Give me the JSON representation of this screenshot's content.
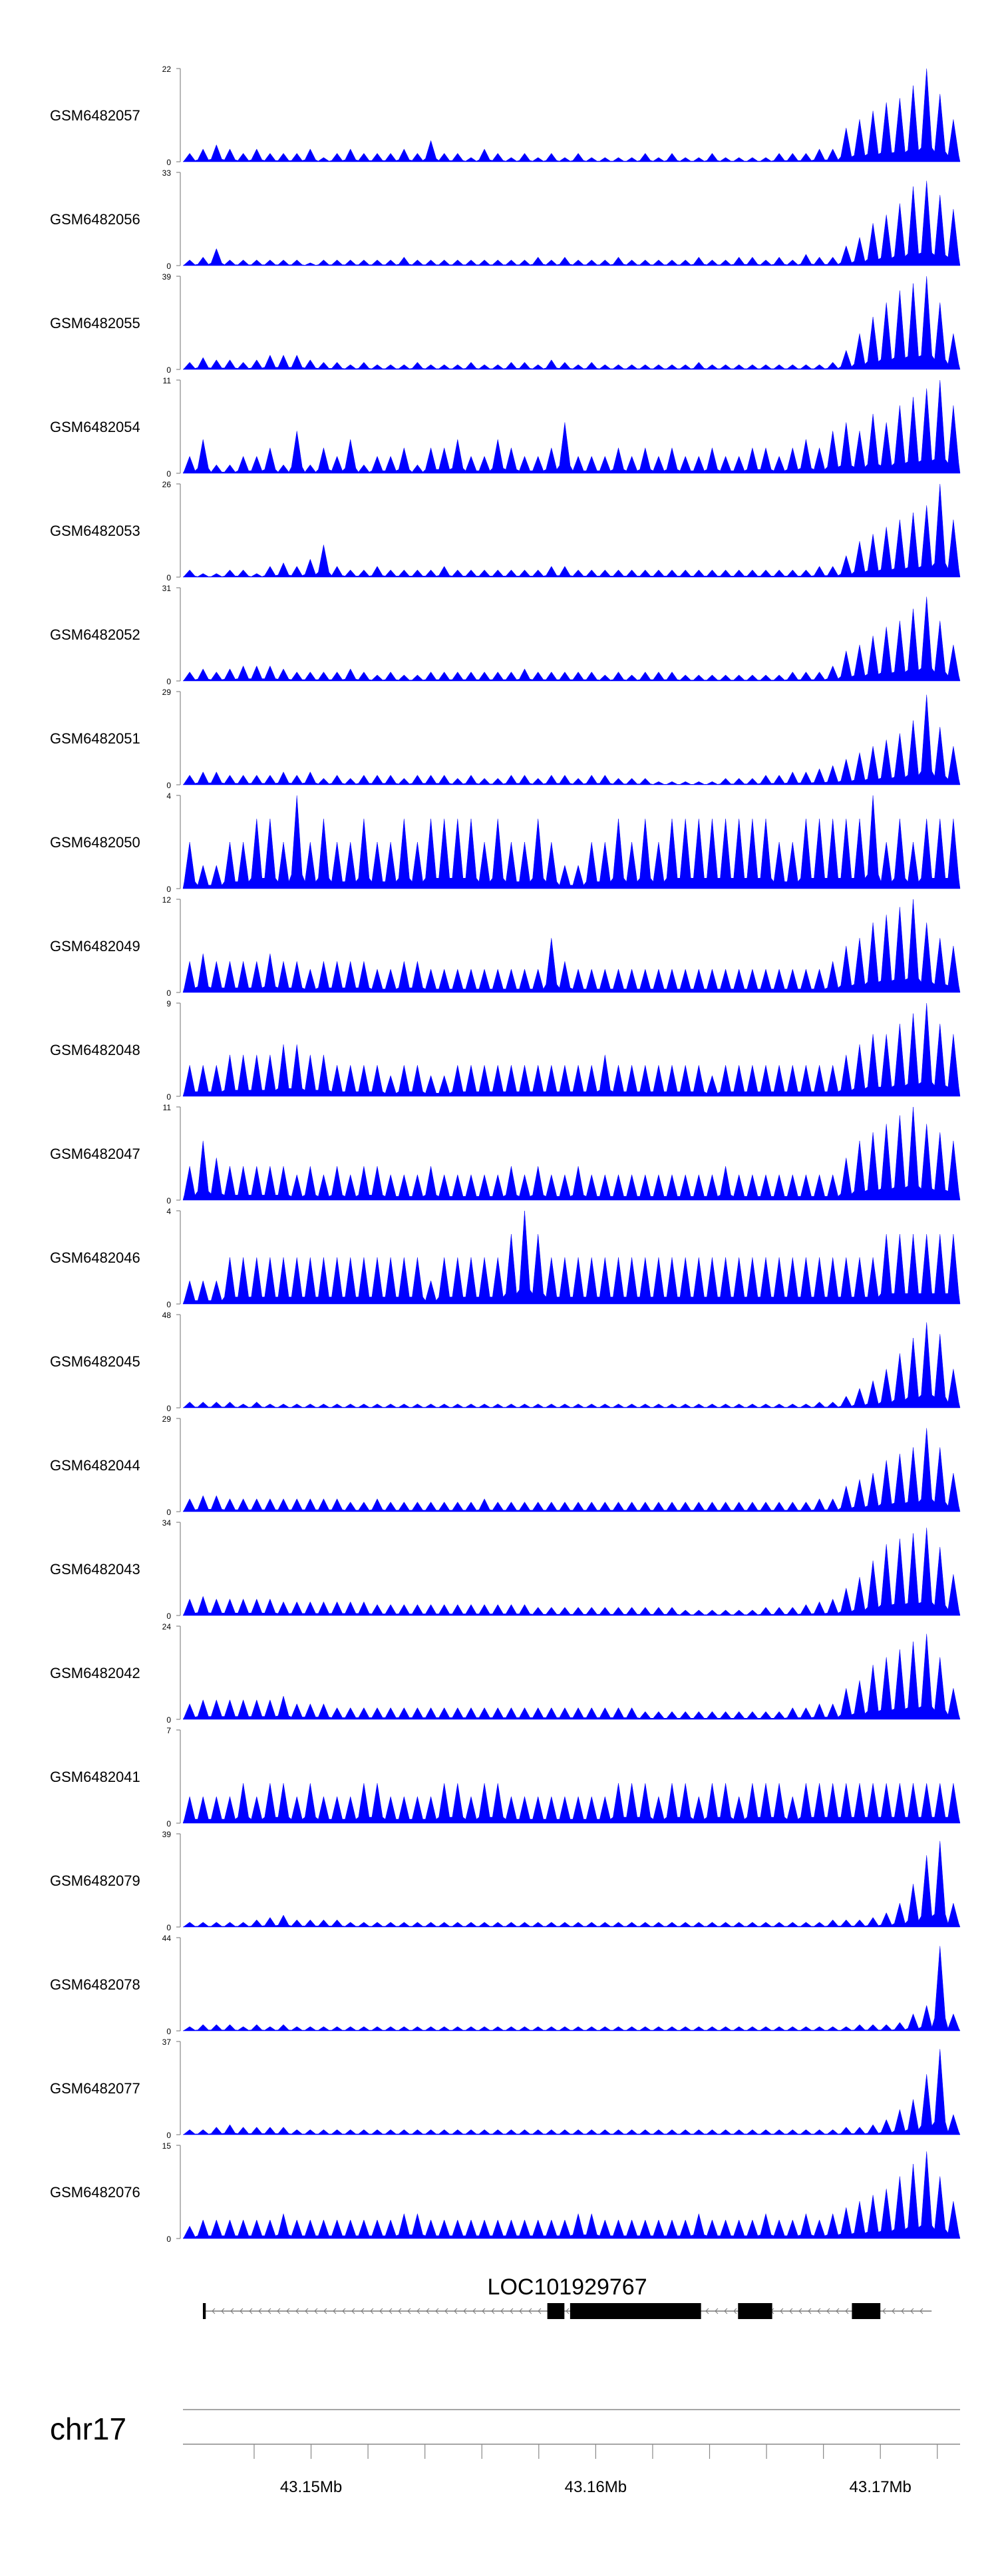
{
  "chart_data": {
    "type": "area",
    "chromosome": "chr17",
    "xlim": [
      43.1455,
      43.1728
    ],
    "x_ticks": [
      43.15,
      43.16,
      43.17
    ],
    "x_tick_labels": [
      "43.15Mb",
      "43.16Mb",
      "43.17Mb"
    ],
    "x_minor_ticks": [
      43.148,
      43.15,
      43.152,
      43.154,
      43.156,
      43.158,
      43.16,
      43.162,
      43.164,
      43.166,
      43.168,
      43.17,
      43.172
    ],
    "series_color": "#0000ff",
    "tracks": [
      {
        "name": "GSM6482057",
        "ymax": 22,
        "values": [
          2,
          3,
          4,
          3,
          2,
          3,
          2,
          2,
          2,
          3,
          1,
          2,
          3,
          2,
          2,
          2,
          3,
          2,
          5,
          2,
          2,
          1,
          3,
          2,
          1,
          2,
          1,
          2,
          1,
          2,
          1,
          1,
          1,
          1,
          2,
          1,
          2,
          1,
          1,
          2,
          1,
          1,
          1,
          1,
          2,
          2,
          2,
          3,
          3,
          8,
          10,
          12,
          14,
          15,
          18,
          22,
          16,
          10
        ]
      },
      {
        "name": "GSM6482056",
        "ymax": 33,
        "values": [
          2,
          3,
          6,
          2,
          2,
          2,
          2,
          2,
          2,
          1,
          2,
          2,
          2,
          2,
          2,
          2,
          3,
          2,
          2,
          2,
          2,
          2,
          2,
          2,
          2,
          2,
          3,
          2,
          3,
          2,
          2,
          2,
          3,
          2,
          2,
          2,
          2,
          2,
          3,
          2,
          2,
          3,
          3,
          2,
          3,
          2,
          4,
          3,
          3,
          7,
          10,
          15,
          18,
          22,
          28,
          30,
          25,
          20
        ]
      },
      {
        "name": "GSM6482055",
        "ymax": 39,
        "values": [
          3,
          5,
          4,
          4,
          3,
          4,
          6,
          6,
          6,
          4,
          3,
          3,
          2,
          3,
          2,
          2,
          2,
          3,
          2,
          2,
          2,
          3,
          2,
          2,
          3,
          3,
          2,
          4,
          3,
          2,
          3,
          2,
          2,
          2,
          2,
          2,
          2,
          2,
          3,
          2,
          2,
          2,
          2,
          2,
          2,
          2,
          2,
          2,
          3,
          8,
          15,
          22,
          28,
          33,
          36,
          39,
          28,
          15
        ]
      },
      {
        "name": "GSM6482054",
        "ymax": 11,
        "values": [
          2,
          4,
          1,
          1,
          2,
          2,
          3,
          1,
          5,
          1,
          3,
          2,
          4,
          1,
          2,
          2,
          3,
          1,
          3,
          3,
          4,
          2,
          2,
          4,
          3,
          2,
          2,
          3,
          6,
          2,
          2,
          2,
          3,
          2,
          3,
          2,
          3,
          2,
          2,
          3,
          2,
          2,
          3,
          3,
          2,
          3,
          4,
          3,
          5,
          6,
          5,
          7,
          6,
          8,
          9,
          10,
          11,
          8
        ]
      },
      {
        "name": "GSM6482053",
        "ymax": 26,
        "values": [
          2,
          1,
          1,
          2,
          2,
          1,
          3,
          4,
          3,
          5,
          9,
          3,
          2,
          2,
          3,
          2,
          2,
          2,
          2,
          3,
          2,
          2,
          2,
          2,
          2,
          2,
          2,
          3,
          3,
          2,
          2,
          2,
          2,
          2,
          2,
          2,
          2,
          2,
          2,
          2,
          2,
          2,
          2,
          2,
          2,
          2,
          2,
          3,
          3,
          6,
          10,
          12,
          14,
          16,
          18,
          20,
          26,
          16
        ]
      },
      {
        "name": "GSM6482052",
        "ymax": 31,
        "values": [
          3,
          4,
          3,
          4,
          5,
          5,
          5,
          4,
          3,
          3,
          3,
          3,
          4,
          3,
          2,
          3,
          2,
          2,
          3,
          3,
          3,
          3,
          3,
          3,
          3,
          4,
          3,
          3,
          3,
          3,
          3,
          2,
          3,
          2,
          3,
          3,
          3,
          2,
          2,
          2,
          2,
          2,
          2,
          2,
          2,
          3,
          3,
          3,
          5,
          10,
          12,
          15,
          18,
          20,
          24,
          28,
          20,
          12
        ]
      },
      {
        "name": "GSM6482051",
        "ymax": 29,
        "values": [
          3,
          4,
          4,
          3,
          3,
          3,
          3,
          4,
          3,
          4,
          2,
          3,
          2,
          3,
          3,
          3,
          2,
          3,
          3,
          3,
          2,
          3,
          2,
          2,
          3,
          3,
          2,
          3,
          3,
          2,
          3,
          3,
          2,
          2,
          2,
          1,
          1,
          1,
          1,
          1,
          2,
          2,
          2,
          3,
          3,
          4,
          4,
          5,
          6,
          8,
          10,
          12,
          14,
          16,
          20,
          28,
          18,
          12
        ]
      },
      {
        "name": "GSM6482050",
        "ymax": 4,
        "values": [
          2,
          1,
          1,
          2,
          2,
          3,
          3,
          2,
          4,
          2,
          3,
          2,
          2,
          3,
          2,
          2,
          3,
          2,
          3,
          3,
          3,
          3,
          2,
          3,
          2,
          2,
          3,
          2,
          1,
          1,
          2,
          2,
          3,
          2,
          3,
          2,
          3,
          3,
          3,
          3,
          3,
          3,
          3,
          3,
          2,
          2,
          3,
          3,
          3,
          3,
          3,
          4,
          2,
          3,
          2,
          3,
          3,
          3
        ]
      },
      {
        "name": "GSM6482049",
        "ymax": 12,
        "values": [
          4,
          5,
          4,
          4,
          4,
          4,
          5,
          4,
          4,
          3,
          4,
          4,
          4,
          4,
          3,
          3,
          4,
          4,
          3,
          3,
          3,
          3,
          3,
          3,
          3,
          3,
          3,
          7,
          4,
          3,
          3,
          3,
          3,
          3,
          3,
          3,
          3,
          3,
          3,
          3,
          3,
          3,
          3,
          3,
          3,
          3,
          3,
          3,
          4,
          6,
          7,
          9,
          10,
          11,
          12,
          9,
          7,
          6
        ]
      },
      {
        "name": "GSM6482048",
        "ymax": 9,
        "values": [
          3,
          3,
          3,
          4,
          4,
          4,
          4,
          5,
          5,
          4,
          4,
          3,
          3,
          3,
          3,
          2,
          3,
          3,
          2,
          2,
          3,
          3,
          3,
          3,
          3,
          3,
          3,
          3,
          3,
          3,
          3,
          4,
          3,
          3,
          3,
          3,
          3,
          3,
          3,
          2,
          3,
          3,
          3,
          3,
          3,
          3,
          3,
          3,
          3,
          4,
          5,
          6,
          6,
          7,
          8,
          9,
          7,
          6
        ]
      },
      {
        "name": "GSM6482047",
        "ymax": 11,
        "values": [
          4,
          7,
          5,
          4,
          4,
          4,
          4,
          4,
          3,
          4,
          3,
          4,
          3,
          4,
          4,
          3,
          3,
          3,
          4,
          3,
          3,
          3,
          3,
          3,
          4,
          3,
          4,
          3,
          3,
          4,
          3,
          3,
          3,
          3,
          3,
          3,
          3,
          3,
          3,
          3,
          4,
          3,
          3,
          3,
          3,
          3,
          3,
          3,
          3,
          5,
          7,
          8,
          9,
          10,
          11,
          9,
          8,
          7
        ]
      },
      {
        "name": "GSM6482046",
        "ymax": 4,
        "values": [
          1,
          1,
          1,
          2,
          2,
          2,
          2,
          2,
          2,
          2,
          2,
          2,
          2,
          2,
          2,
          2,
          2,
          2,
          1,
          2,
          2,
          2,
          2,
          2,
          3,
          4,
          3,
          2,
          2,
          2,
          2,
          2,
          2,
          2,
          2,
          2,
          2,
          2,
          2,
          2,
          2,
          2,
          2,
          2,
          2,
          2,
          2,
          2,
          2,
          2,
          2,
          2,
          3,
          3,
          3,
          3,
          3,
          3
        ]
      },
      {
        "name": "GSM6482045",
        "ymax": 48,
        "values": [
          3,
          3,
          3,
          3,
          2,
          3,
          2,
          2,
          2,
          2,
          2,
          2,
          2,
          2,
          2,
          2,
          2,
          2,
          2,
          2,
          2,
          2,
          2,
          2,
          2,
          2,
          2,
          2,
          2,
          2,
          2,
          2,
          2,
          2,
          2,
          2,
          2,
          2,
          2,
          2,
          2,
          2,
          2,
          2,
          2,
          2,
          2,
          3,
          3,
          6,
          10,
          14,
          20,
          28,
          36,
          44,
          38,
          20
        ]
      },
      {
        "name": "GSM6482044",
        "ymax": 29,
        "values": [
          4,
          5,
          5,
          4,
          4,
          4,
          4,
          4,
          4,
          4,
          4,
          4,
          3,
          3,
          4,
          3,
          3,
          3,
          3,
          3,
          3,
          3,
          4,
          3,
          3,
          3,
          3,
          3,
          3,
          3,
          3,
          3,
          3,
          3,
          3,
          3,
          3,
          3,
          3,
          3,
          3,
          3,
          3,
          3,
          3,
          3,
          3,
          4,
          4,
          8,
          10,
          12,
          16,
          18,
          20,
          26,
          20,
          12
        ]
      },
      {
        "name": "GSM6482043",
        "ymax": 34,
        "values": [
          6,
          7,
          6,
          6,
          6,
          6,
          6,
          5,
          5,
          5,
          5,
          5,
          5,
          5,
          4,
          4,
          4,
          4,
          4,
          4,
          4,
          4,
          4,
          4,
          4,
          4,
          3,
          3,
          3,
          3,
          3,
          3,
          3,
          3,
          3,
          3,
          3,
          2,
          2,
          2,
          2,
          2,
          2,
          3,
          3,
          3,
          4,
          5,
          6,
          10,
          14,
          20,
          26,
          28,
          30,
          32,
          25,
          15
        ]
      },
      {
        "name": "GSM6482042",
        "ymax": 24,
        "values": [
          4,
          5,
          5,
          5,
          5,
          5,
          5,
          6,
          4,
          4,
          4,
          3,
          3,
          3,
          3,
          3,
          3,
          3,
          3,
          3,
          3,
          3,
          3,
          3,
          3,
          3,
          3,
          3,
          3,
          3,
          3,
          3,
          3,
          3,
          2,
          2,
          2,
          2,
          2,
          2,
          2,
          2,
          2,
          2,
          2,
          3,
          3,
          4,
          4,
          8,
          10,
          14,
          16,
          18,
          20,
          22,
          16,
          8
        ]
      },
      {
        "name": "GSM6482041",
        "ymax": 7,
        "values": [
          2,
          2,
          2,
          2,
          3,
          2,
          3,
          3,
          2,
          3,
          2,
          2,
          2,
          3,
          3,
          2,
          2,
          2,
          2,
          3,
          3,
          2,
          3,
          3,
          2,
          2,
          2,
          2,
          2,
          2,
          2,
          2,
          3,
          3,
          3,
          2,
          3,
          3,
          2,
          3,
          3,
          2,
          3,
          3,
          3,
          2,
          3,
          3,
          3,
          3,
          3,
          3,
          3,
          3,
          3,
          3,
          3,
          3
        ]
      },
      {
        "name": "GSM6482079",
        "ymax": 39,
        "values": [
          2,
          2,
          2,
          2,
          2,
          3,
          4,
          5,
          3,
          3,
          3,
          3,
          2,
          2,
          2,
          2,
          2,
          2,
          2,
          2,
          2,
          2,
          2,
          2,
          2,
          2,
          2,
          2,
          2,
          2,
          2,
          2,
          2,
          2,
          2,
          2,
          2,
          2,
          2,
          2,
          2,
          2,
          2,
          2,
          2,
          2,
          2,
          2,
          3,
          3,
          3,
          4,
          6,
          10,
          18,
          30,
          36,
          10
        ]
      },
      {
        "name": "GSM6482078",
        "ymax": 44,
        "values": [
          2,
          3,
          3,
          3,
          2,
          3,
          2,
          3,
          2,
          2,
          2,
          2,
          2,
          2,
          2,
          2,
          2,
          2,
          2,
          2,
          2,
          2,
          2,
          2,
          2,
          2,
          2,
          2,
          2,
          2,
          2,
          2,
          2,
          2,
          2,
          2,
          2,
          2,
          2,
          2,
          2,
          2,
          2,
          2,
          2,
          2,
          2,
          2,
          2,
          2,
          3,
          3,
          3,
          4,
          8,
          12,
          40,
          8
        ]
      },
      {
        "name": "GSM6482077",
        "ymax": 37,
        "values": [
          2,
          2,
          3,
          4,
          3,
          3,
          3,
          3,
          2,
          2,
          2,
          2,
          2,
          2,
          2,
          2,
          2,
          2,
          2,
          2,
          2,
          2,
          2,
          2,
          2,
          2,
          2,
          2,
          2,
          2,
          2,
          2,
          2,
          2,
          2,
          2,
          2,
          2,
          2,
          2,
          2,
          2,
          2,
          2,
          2,
          2,
          2,
          2,
          2,
          3,
          3,
          4,
          6,
          10,
          14,
          24,
          34,
          8
        ]
      },
      {
        "name": "GSM6482076",
        "ymax": 15,
        "values": [
          2,
          3,
          3,
          3,
          3,
          3,
          3,
          4,
          3,
          3,
          3,
          3,
          3,
          3,
          3,
          3,
          4,
          4,
          3,
          3,
          3,
          3,
          3,
          3,
          3,
          3,
          3,
          3,
          3,
          4,
          4,
          3,
          3,
          3,
          3,
          3,
          3,
          3,
          4,
          3,
          3,
          3,
          3,
          4,
          3,
          3,
          4,
          3,
          4,
          5,
          6,
          7,
          8,
          10,
          12,
          14,
          10,
          6
        ]
      }
    ],
    "gene": {
      "name": "LOC101929767",
      "strand": "-",
      "start": 43.1462,
      "end": 43.1718,
      "exons": [
        [
          43.1462,
          43.1463
        ],
        [
          43.1583,
          43.1589
        ],
        [
          43.1591,
          43.1637
        ],
        [
          43.165,
          43.1662
        ],
        [
          43.169,
          43.17
        ]
      ]
    }
  }
}
